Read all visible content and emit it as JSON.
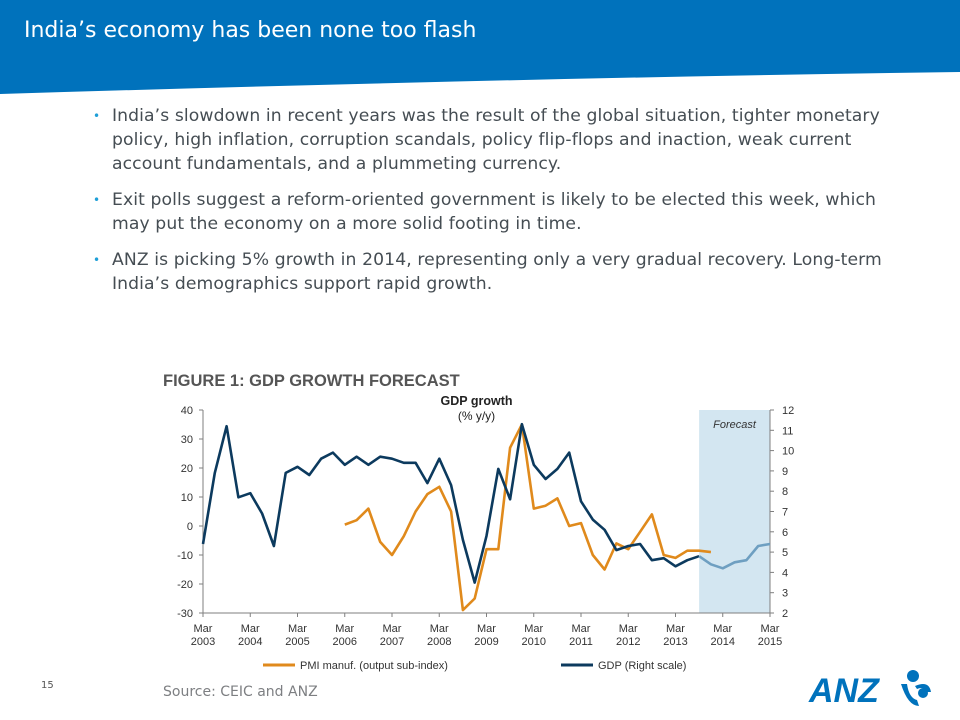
{
  "slide": {
    "title": "India’s economy has been none too flash",
    "bullets": [
      "India’s slowdown in recent years was the result of the global situation, tighter monetary policy, high inflation, corruption scandals, policy flip-flops and inaction, weak current account fundamentals, and a plummeting currency.",
      "Exit polls suggest a reform-oriented government is likely to be elected this week, which may put the economy on a more solid footing in time.",
      "ANZ is picking 5% growth in 2014, representing only a very gradual recovery. Long-term India’s demographics support rapid growth."
    ],
    "bullet_symbol": "•",
    "slide_number": "15",
    "source": "Source: CEIC and ANZ",
    "logo_text": "ANZ",
    "colors": {
      "header": "#0072bc",
      "bullet": "#1f9fd7",
      "text": "#454d53",
      "logo": "#0072bc"
    }
  },
  "chart_data": {
    "type": "line",
    "figure_label": "FIGURE 1: GDP GROWTH FORECAST",
    "title": "GDP growth",
    "subtitle": "(% y/y)",
    "annotation": "Forecast",
    "x_tick_labels": [
      [
        "Mar",
        "2003"
      ],
      [
        "Mar",
        "2004"
      ],
      [
        "Mar",
        "2005"
      ],
      [
        "Mar",
        "2006"
      ],
      [
        "Mar",
        "2007"
      ],
      [
        "Mar",
        "2008"
      ],
      [
        "Mar",
        "2009"
      ],
      [
        "Mar",
        "2010"
      ],
      [
        "Mar",
        "2011"
      ],
      [
        "Mar",
        "2012"
      ],
      [
        "Mar",
        "2013"
      ],
      [
        "Mar",
        "2014"
      ],
      [
        "Mar",
        "2015"
      ]
    ],
    "x_range": [
      2003.0,
      2015.0
    ],
    "forecast_range": [
      2013.5,
      2015.0
    ],
    "y_left": {
      "range": [
        -30,
        40
      ],
      "ticks": [
        40,
        30,
        20,
        10,
        0,
        -10,
        -20,
        -30
      ]
    },
    "y_right": {
      "range": [
        2,
        12
      ],
      "ticks": [
        12,
        11,
        10,
        9,
        8,
        7,
        6,
        5,
        4,
        3,
        2
      ]
    },
    "grid": false,
    "legend_position": "bottom",
    "colors": {
      "pmi": "#e08a1c",
      "gdp": "#0c3a5e",
      "gdp_forecast": "#6e9fc1",
      "forecast_shade": "#d3e6f1",
      "axis": "#7f7f7f",
      "figure_label": "#555555"
    },
    "series": [
      {
        "name": "PMI manuf. (output sub-index)",
        "axis": "left",
        "x": [
          2006.0,
          2006.25,
          2006.5,
          2006.75,
          2007.0,
          2007.25,
          2007.5,
          2007.75,
          2008.0,
          2008.25,
          2008.5,
          2008.75,
          2009.0,
          2009.25,
          2009.5,
          2009.75,
          2010.0,
          2010.25,
          2010.5,
          2010.75,
          2011.0,
          2011.25,
          2011.5,
          2011.75,
          2012.0,
          2012.25,
          2012.5,
          2012.75,
          2013.0,
          2013.25,
          2013.5,
          2013.75
        ],
        "values": [
          0.5,
          2,
          6,
          -5.5,
          -10,
          -3.5,
          5,
          11,
          13.5,
          5,
          -29,
          -25,
          -8,
          -8,
          27,
          35,
          6,
          7,
          9.5,
          0,
          1,
          -10,
          -15,
          -6,
          -8,
          -2,
          4,
          -10,
          -11,
          -8.5,
          -8.5,
          -9
        ]
      },
      {
        "name": "GDP (Right scale)",
        "axis": "right",
        "x": [
          2003.0,
          2003.25,
          2003.5,
          2003.75,
          2004.0,
          2004.25,
          2004.5,
          2004.75,
          2005.0,
          2005.25,
          2005.5,
          2005.75,
          2006.0,
          2006.25,
          2006.5,
          2006.75,
          2007.0,
          2007.25,
          2007.5,
          2007.75,
          2008.0,
          2008.25,
          2008.5,
          2008.75,
          2009.0,
          2009.25,
          2009.5,
          2009.75,
          2010.0,
          2010.25,
          2010.5,
          2010.75,
          2011.0,
          2011.25,
          2011.5,
          2011.75,
          2012.0,
          2012.25,
          2012.5,
          2012.75,
          2013.0,
          2013.25,
          2013.5
        ],
        "values": [
          5.4,
          8.9,
          11.2,
          7.7,
          7.9,
          6.9,
          5.3,
          8.9,
          9.2,
          8.8,
          9.6,
          9.9,
          9.3,
          9.7,
          9.3,
          9.7,
          9.6,
          9.4,
          9.4,
          8.4,
          9.6,
          8.3,
          5.6,
          3.5,
          5.8,
          9.1,
          7.6,
          11.3,
          9.3,
          8.6,
          9.1,
          9.9,
          7.5,
          6.6,
          6.1,
          5.1,
          5.3,
          5.4,
          4.6,
          4.7,
          4.3,
          4.6,
          4.8
        ]
      },
      {
        "name": "GDP forecast",
        "axis": "right",
        "x": [
          2013.5,
          2013.75,
          2014.0,
          2014.25,
          2014.5,
          2014.75,
          2015.0
        ],
        "values": [
          4.8,
          4.4,
          4.2,
          4.5,
          4.6,
          5.3,
          5.4
        ]
      }
    ],
    "legend": [
      "PMI manuf. (output sub-index)",
      "GDP (Right scale)"
    ]
  }
}
